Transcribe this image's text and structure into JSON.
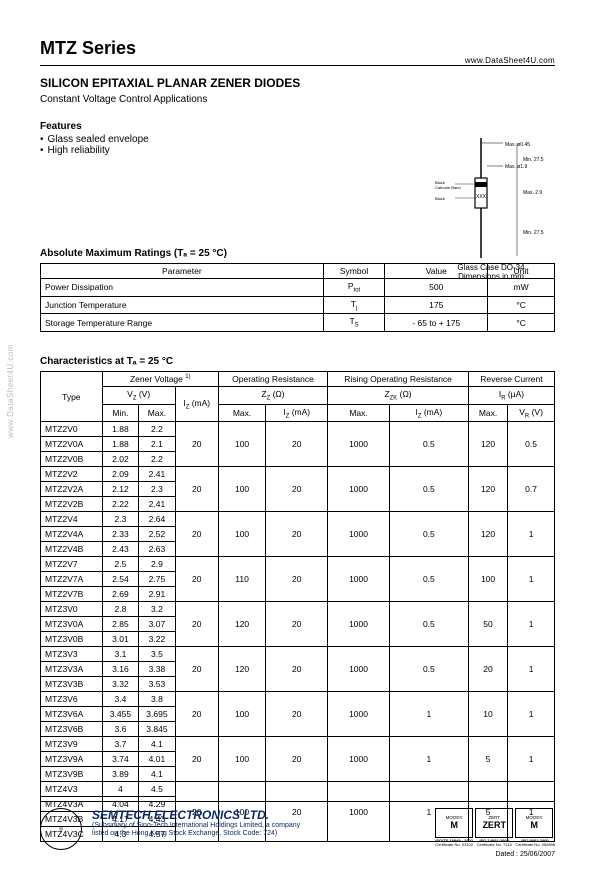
{
  "meta": {
    "top_url": "www.DataSheet4U.com",
    "left_watermark": "www.DataSheet4U.com"
  },
  "header": {
    "series_title": "MTZ Series",
    "product_title": "SILICON EPITAXIAL PLANAR ZENER DIODES",
    "application_note": "Constant Voltage Control Applications",
    "features_label": "Features",
    "features": [
      "Glass sealed envelope",
      "High reliability"
    ]
  },
  "drawing": {
    "labels": {
      "d1": "Max. ø0.45",
      "d2": "Max. ø1.9",
      "l1": "Min. 27.5",
      "l2": "Max. 2.9",
      "l3": "Min. 27.5",
      "band1": "Black",
      "band2": "Cathode Band",
      "band3": "Black"
    },
    "marking": "XXX",
    "caption1": "Glass Case DO-34",
    "caption2": "Dimensions in mm"
  },
  "amr": {
    "heading": "Absolute Maximum Ratings (Tₐ = 25 °C)",
    "columns": {
      "param": "Parameter",
      "symbol": "Symbol",
      "value": "Value",
      "unit": "Unit"
    },
    "rows": [
      {
        "param": "Power Dissipation",
        "symbol": "P_tot",
        "value": "500",
        "unit": "mW"
      },
      {
        "param": "Junction Temperature",
        "symbol": "T_j",
        "value": "175",
        "unit": "°C"
      },
      {
        "param": "Storage Temperature Range",
        "symbol": "T_S",
        "value": "- 65 to + 175",
        "unit": "°C"
      }
    ]
  },
  "characteristics": {
    "heading": "Characteristics at Tₐ = 25 °C",
    "columns": {
      "type": "Type",
      "zener_group": "Zener Voltage 1)",
      "zener_sub": "V_Z (V)",
      "zener_min": "Min.",
      "zener_max": "Max.",
      "zener_iz": "I_Z (mA)",
      "opres_group": "Operating Resistance",
      "opres_sub": "Z_Z (Ω)",
      "opres_max": "Max.",
      "opres_iz": "I_Z (mA)",
      "rores_group": "Rising Operating Resistance",
      "rores_sub": "Z_ZK (Ω)",
      "rores_max": "Max.",
      "rores_iz": "I_Z (mA)",
      "rev_group": "Reverse Current",
      "rev_sub": "I_R (µA)",
      "rev_max": "Max.",
      "rev_vr": "V_R (V)"
    },
    "groups": [
      {
        "types": [
          {
            "name": "MTZ2V0",
            "min": "1.88",
            "max": "2.2"
          },
          {
            "name": "MTZ2V0A",
            "min": "1.88",
            "max": "2.1"
          },
          {
            "name": "MTZ2V0B",
            "min": "2.02",
            "max": "2.2"
          }
        ],
        "iz": "20",
        "zz_max": "100",
        "zz_iz": "20",
        "zzk_max": "1000",
        "zzk_iz": "0.5",
        "ir_max": "120",
        "vr": "0.5"
      },
      {
        "types": [
          {
            "name": "MTZ2V2",
            "min": "2.09",
            "max": "2.41"
          },
          {
            "name": "MTZ2V2A",
            "min": "2.12",
            "max": "2.3"
          },
          {
            "name": "MTZ2V2B",
            "min": "2.22",
            "max": "2.41"
          }
        ],
        "iz": "20",
        "zz_max": "100",
        "zz_iz": "20",
        "zzk_max": "1000",
        "zzk_iz": "0.5",
        "ir_max": "120",
        "vr": "0.7"
      },
      {
        "types": [
          {
            "name": "MTZ2V4",
            "min": "2.3",
            "max": "2.64"
          },
          {
            "name": "MTZ2V4A",
            "min": "2.33",
            "max": "2.52"
          },
          {
            "name": "MTZ2V4B",
            "min": "2.43",
            "max": "2.63"
          }
        ],
        "iz": "20",
        "zz_max": "100",
        "zz_iz": "20",
        "zzk_max": "1000",
        "zzk_iz": "0.5",
        "ir_max": "120",
        "vr": "1"
      },
      {
        "types": [
          {
            "name": "MTZ2V7",
            "min": "2.5",
            "max": "2.9"
          },
          {
            "name": "MTZ2V7A",
            "min": "2.54",
            "max": "2.75"
          },
          {
            "name": "MTZ2V7B",
            "min": "2.69",
            "max": "2.91"
          }
        ],
        "iz": "20",
        "zz_max": "110",
        "zz_iz": "20",
        "zzk_max": "1000",
        "zzk_iz": "0.5",
        "ir_max": "100",
        "vr": "1"
      },
      {
        "types": [
          {
            "name": "MTZ3V0",
            "min": "2.8",
            "max": "3.2"
          },
          {
            "name": "MTZ3V0A",
            "min": "2.85",
            "max": "3.07"
          },
          {
            "name": "MTZ3V0B",
            "min": "3.01",
            "max": "3.22"
          }
        ],
        "iz": "20",
        "zz_max": "120",
        "zz_iz": "20",
        "zzk_max": "1000",
        "zzk_iz": "0.5",
        "ir_max": "50",
        "vr": "1"
      },
      {
        "types": [
          {
            "name": "MTZ3V3",
            "min": "3.1",
            "max": "3.5"
          },
          {
            "name": "MTZ3V3A",
            "min": "3.16",
            "max": "3.38"
          },
          {
            "name": "MTZ3V3B",
            "min": "3.32",
            "max": "3.53"
          }
        ],
        "iz": "20",
        "zz_max": "120",
        "zz_iz": "20",
        "zzk_max": "1000",
        "zzk_iz": "0.5",
        "ir_max": "20",
        "vr": "1"
      },
      {
        "types": [
          {
            "name": "MTZ3V6",
            "min": "3.4",
            "max": "3.8"
          },
          {
            "name": "MTZ3V6A",
            "min": "3.455",
            "max": "3.695"
          },
          {
            "name": "MTZ3V6B",
            "min": "3.6",
            "max": "3.845"
          }
        ],
        "iz": "20",
        "zz_max": "100",
        "zz_iz": "20",
        "zzk_max": "1000",
        "zzk_iz": "1",
        "ir_max": "10",
        "vr": "1"
      },
      {
        "types": [
          {
            "name": "MTZ3V9",
            "min": "3.7",
            "max": "4.1"
          },
          {
            "name": "MTZ3V9A",
            "min": "3.74",
            "max": "4.01"
          },
          {
            "name": "MTZ3V9B",
            "min": "3.89",
            "max": "4.1"
          }
        ],
        "iz": "20",
        "zz_max": "100",
        "zz_iz": "20",
        "zzk_max": "1000",
        "zzk_iz": "1",
        "ir_max": "5",
        "vr": "1"
      },
      {
        "types": [
          {
            "name": "MTZ4V3",
            "min": "4",
            "max": "4.5"
          },
          {
            "name": "MTZ4V3A",
            "min": "4.04",
            "max": "4.29"
          },
          {
            "name": "MTZ4V3B",
            "min": "4.17",
            "max": "4.43"
          },
          {
            "name": "MTZ4V3C",
            "min": "4.3",
            "max": "4.57"
          }
        ],
        "iz": "20",
        "zz_max": "100",
        "zz_iz": "20",
        "zzk_max": "1000",
        "zzk_iz": "1",
        "ir_max": "5",
        "vr": "1"
      }
    ]
  },
  "footer": {
    "company": "SEMTECH ELECTRONICS LTD.",
    "sub1": "(Subsidiary of Sino-Tech International Holdings Limited, a company",
    "sub2": "listed on the Hong Kong Stock Exchange, Stock Code: 724)",
    "certs": [
      {
        "top": "MOODY",
        "mid": "M",
        "iso": "ISO/TS 16949 : 2002",
        "cert": "Certificate No. 03102"
      },
      {
        "top": "ZERT",
        "mid": "ZERT",
        "iso": "ISO 14001:2004",
        "cert": "Certificate No. 7116"
      },
      {
        "top": "MOODY",
        "mid": "M",
        "iso": "ISO 9001:2000",
        "cert": "Certificate No. 050898"
      }
    ],
    "date": "Dated : 25/06/2007"
  }
}
